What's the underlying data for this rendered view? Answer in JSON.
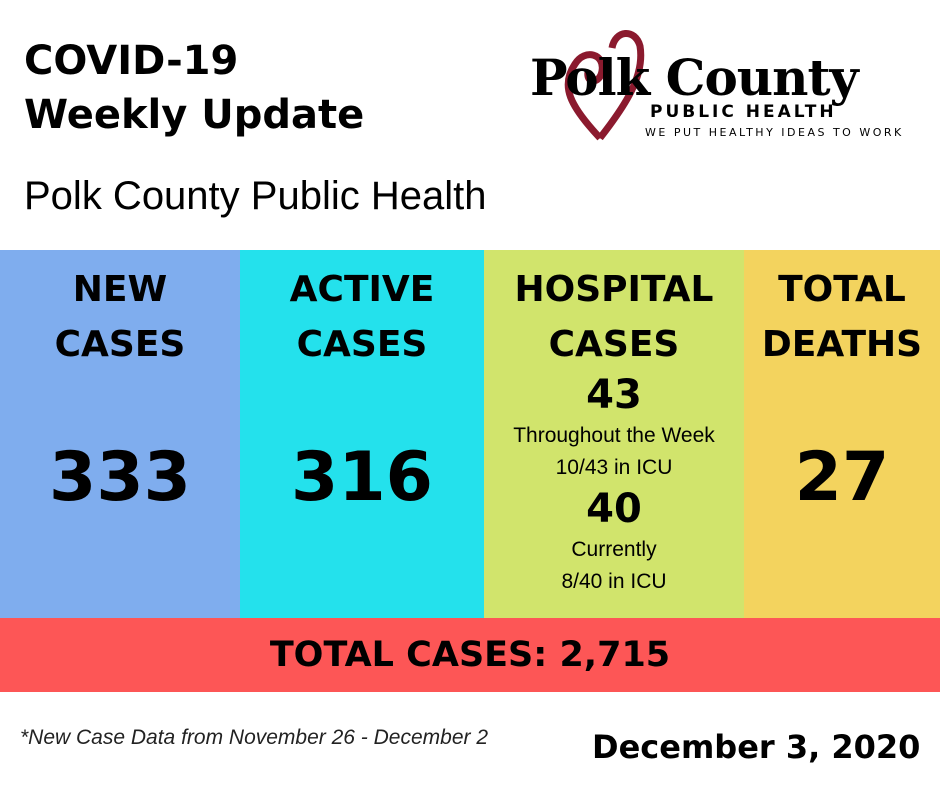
{
  "header": {
    "title_line1": "COVID-19",
    "title_line2": "Weekly Update",
    "subtitle": "Polk County Public Health"
  },
  "logo": {
    "name": "Polk County",
    "line2": "PUBLIC HEALTH",
    "tagline": "WE PUT HEALTHY IDEAS TO WORK",
    "heart_color": "#8b1a2e"
  },
  "stats": {
    "new": {
      "label1": "NEW",
      "label2": "CASES",
      "value": "333",
      "color": "#7fadee"
    },
    "active": {
      "label1": "ACTIVE",
      "label2": "CASES",
      "value": "316",
      "color": "#24e1ec"
    },
    "hospital": {
      "label1": "HOSPITAL",
      "label2": "CASES",
      "week_value": "43",
      "week_label": "Throughout the Week",
      "week_icu": "10/43 in ICU",
      "current_value": "40",
      "current_label": "Currently",
      "current_icu": "8/40 in ICU",
      "color": "#d1e46c"
    },
    "deaths": {
      "label1": "TOTAL",
      "label2": "DEATHS",
      "value": "27",
      "color": "#f3d35e"
    }
  },
  "total": {
    "text": "TOTAL CASES: 2,715",
    "color": "#fd5656"
  },
  "footer": {
    "note": "*New Case Data from November 26 - December 2",
    "date": "December 3, 2020"
  }
}
